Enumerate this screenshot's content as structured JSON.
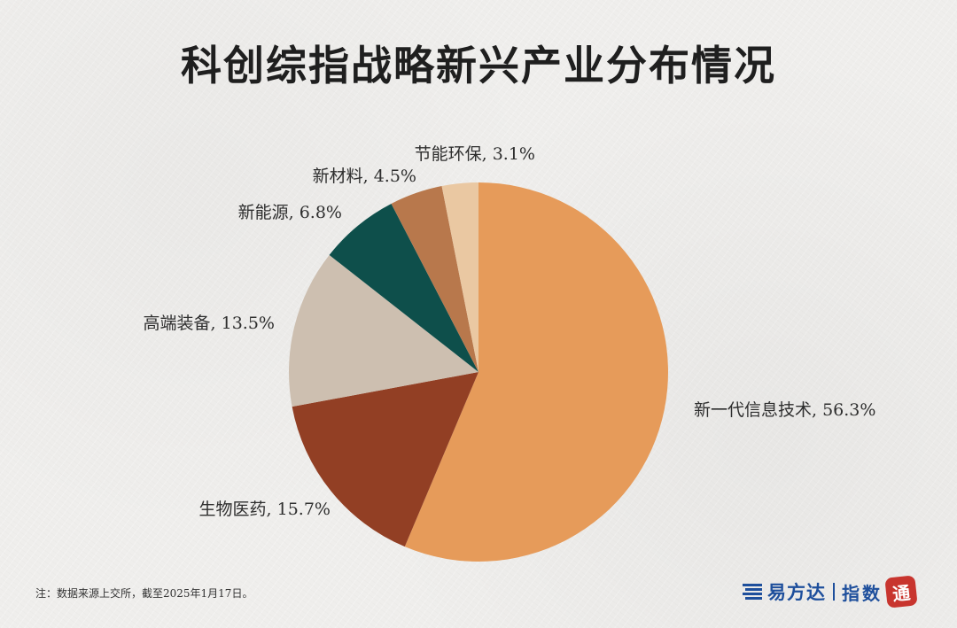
{
  "title": "科创综指战略新兴产业分布情况",
  "chart_data": {
    "type": "pie",
    "title": "科创综指战略新兴产业分布情况",
    "start_angle_deg": 0,
    "direction": "clockwise",
    "slices": [
      {
        "name": "新一代信息技术",
        "value": 56.3,
        "label": "新一代信息技术, 56.3%",
        "color": "#e69b5a"
      },
      {
        "name": "生物医药",
        "value": 15.7,
        "label": "生物医药, 15.7%",
        "color": "#923f24"
      },
      {
        "name": "高端装备",
        "value": 13.5,
        "label": "高端装备, 13.5%",
        "color": "#cdbfb0"
      },
      {
        "name": "新能源",
        "value": 6.8,
        "label": "新能源, 6.8%",
        "color": "#0e4f4b"
      },
      {
        "name": "新材料",
        "value": 4.5,
        "label": "新材料, 4.5%",
        "color": "#b8784c"
      },
      {
        "name": "节能环保",
        "value": 3.1,
        "label": "节能环保, 3.1%",
        "color": "#eac8a2"
      }
    ]
  },
  "footnote": "注：数据来源上交所，截至2025年1月17日。",
  "brand": {
    "name": "易方达",
    "sub": "指数",
    "seal": "通",
    "color": "#1e4f9c",
    "seal_color": "#c8352e"
  }
}
